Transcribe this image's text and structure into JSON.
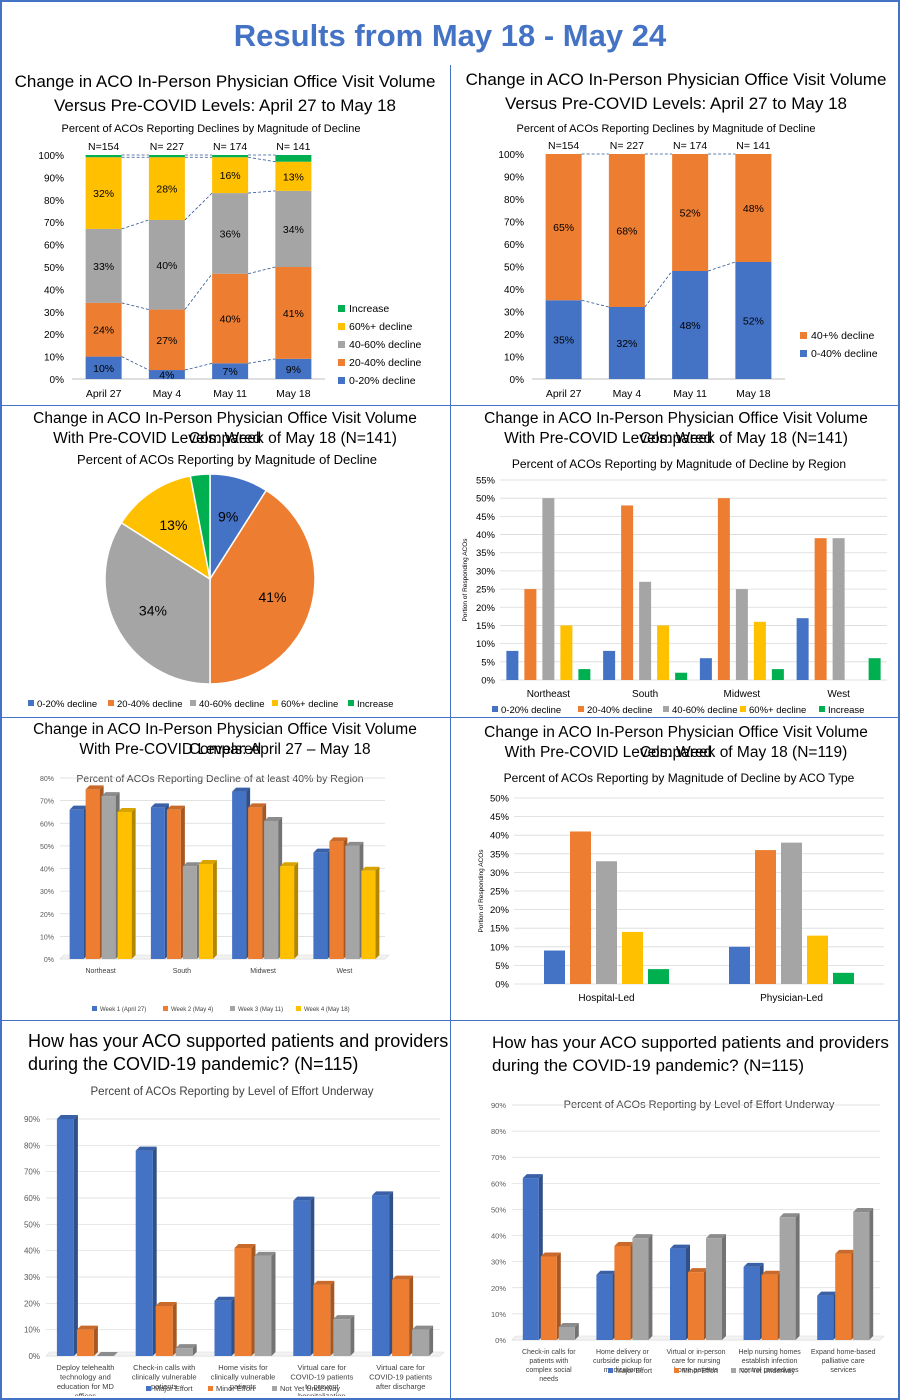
{
  "page": {
    "title": "Results from May 18 - May 24"
  },
  "colors": {
    "blue": "#4472c4",
    "orange": "#ed7d31",
    "gray": "#a5a5a5",
    "yellow": "#ffc000",
    "green": "#00b050"
  },
  "panels": {
    "p1": {
      "title1": "Change in ACO In-Person Physician Office Visit Volume",
      "title2": "Versus Pre-COVID Levels: April 27 to May 18"
    },
    "p2": {
      "title1": "Change in ACO In-Person Physician Office Visit Volume",
      "title2": "Versus Pre-COVID Levels: April 27 to May 18"
    },
    "p3": {
      "title1": "Change in ACO In-Person Physician Office Visit Volume Compared",
      "title2": "With Pre-COVID Levels: Week of May 18 (N=141)"
    },
    "p4": {
      "title1": "Change in ACO In-Person Physician Office Visit Volume Compared",
      "title2": "With Pre-COVID Levels: Week of May 18 (N=141)"
    },
    "p5": {
      "title1": "Change in ACO In-Person Physician Office Visit Volume Compared",
      "title2": "With Pre-COVID Levels: April 27 – May 18"
    },
    "p6": {
      "title1": "Change in ACO In-Person Physician Office Visit Volume Compared",
      "title2": "With Pre-COVID Levels: Week of May 18 (N=119)"
    },
    "p7": {
      "title1": "How has your ACO supported patients and providers",
      "title2": "during the COVID-19 pandemic? (N=115)"
    },
    "p8": {
      "title1": "How has your ACO supported patients and providers",
      "title2": "during the COVID-19 pandemic? (N=115)"
    }
  },
  "chart_data": [
    {
      "id": "c1",
      "type": "bar",
      "stacked": true,
      "title": "Percent of ACOs Reporting Declines by Magnitude of Decline",
      "categories": [
        "April 27",
        "May 4",
        "May 11",
        "May 18"
      ],
      "n_labels": [
        "N=154",
        "N= 227",
        "N= 174",
        "N= 141"
      ],
      "ylim": [
        0,
        100
      ],
      "yticks": [
        "0%",
        "10%",
        "20%",
        "30%",
        "40%",
        "50%",
        "60%",
        "70%",
        "80%",
        "90%",
        "100%"
      ],
      "series": [
        {
          "name": "0-20% decline",
          "values": [
            10,
            4,
            7,
            9
          ],
          "labels": [
            "10%",
            "4%",
            "7%",
            "9%"
          ]
        },
        {
          "name": "20-40% decline",
          "values": [
            24,
            27,
            40,
            41
          ],
          "labels": [
            "24%",
            "27%",
            "40%",
            "41%"
          ]
        },
        {
          "name": "40-60% decline",
          "values": [
            33,
            40,
            36,
            34
          ],
          "labels": [
            "33%",
            "40%",
            "36%",
            "34%"
          ]
        },
        {
          "name": "60%+ decline",
          "values": [
            32,
            28,
            16,
            13
          ],
          "labels": [
            "32%",
            "28%",
            "16%",
            "13%"
          ]
        },
        {
          "name": "Increase",
          "values": [
            1,
            1,
            1,
            3
          ],
          "labels": [
            "",
            "",
            "",
            ""
          ]
        }
      ],
      "legend": "right",
      "legend_order": [
        "Increase",
        "60%+ decline",
        "40-60% decline",
        "20-40% decline",
        "0-20% decline"
      ],
      "grid": false
    },
    {
      "id": "c2",
      "type": "bar",
      "stacked": true,
      "title": "Percent of ACOs Reporting Declines by Magnitude of Decline",
      "categories": [
        "April 27",
        "May 4",
        "May 11",
        "May 18"
      ],
      "n_labels": [
        "N=154",
        "N= 227",
        "N= 174",
        "N= 141"
      ],
      "ylim": [
        0,
        100
      ],
      "yticks": [
        "0%",
        "10%",
        "20%",
        "30%",
        "40%",
        "50%",
        "60%",
        "70%",
        "80%",
        "90%",
        "100%"
      ],
      "series": [
        {
          "name": "0-40% decline",
          "values": [
            35,
            32,
            48,
            52
          ],
          "labels": [
            "35%",
            "32%",
            "48%",
            "52%"
          ]
        },
        {
          "name": "40+% decline",
          "values": [
            65,
            68,
            52,
            48
          ],
          "labels": [
            "65%",
            "68%",
            "52%",
            "48%"
          ]
        }
      ],
      "legend": "right",
      "legend_order": [
        "40+% decline",
        "0-40% decline"
      ],
      "grid": false
    },
    {
      "id": "c3",
      "type": "pie",
      "title": "Percent of ACOs Reporting by Magnitude of Decline",
      "series": [
        {
          "name": "0-20% decline",
          "value": 9,
          "label": "9%"
        },
        {
          "name": "20-40% decline",
          "value": 41,
          "label": "41%"
        },
        {
          "name": "40-60% decline",
          "value": 34,
          "label": "34%"
        },
        {
          "name": "60%+ decline",
          "value": 13,
          "label": "13%"
        },
        {
          "name": "Increase",
          "value": 3,
          "label": ""
        }
      ],
      "legend": "bottom"
    },
    {
      "id": "c4",
      "type": "bar",
      "title": "Percent of ACOs Reporting by Magnitude of Decline by Region",
      "ylabel": "Portion of Responding ACOs",
      "categories": [
        "Northeast",
        "South",
        "Midwest",
        "West"
      ],
      "ylim": [
        0,
        55
      ],
      "yticks": [
        "0%",
        "5%",
        "10%",
        "15%",
        "20%",
        "25%",
        "30%",
        "35%",
        "40%",
        "45%",
        "50%",
        "55%"
      ],
      "series": [
        {
          "name": "0-20% decline",
          "values": [
            8,
            8,
            6,
            17
          ]
        },
        {
          "name": "20-40% decline",
          "values": [
            25,
            48,
            50,
            39
          ]
        },
        {
          "name": "40-60% decline",
          "values": [
            50,
            27,
            25,
            39
          ]
        },
        {
          "name": "60%+ decline",
          "values": [
            15,
            15,
            16,
            0
          ]
        },
        {
          "name": "Increase",
          "values": [
            3,
            2,
            3,
            6
          ]
        }
      ],
      "legend": "bottom",
      "grid": true
    },
    {
      "id": "c5",
      "type": "bar",
      "style": "3d",
      "title": "Percent of ACOs Reporting Decline of at least 40% by Region",
      "categories": [
        "Northeast",
        "South",
        "Midwest",
        "West"
      ],
      "ylim": [
        0,
        80
      ],
      "yticks": [
        "0%",
        "10%",
        "20%",
        "30%",
        "40%",
        "50%",
        "60%",
        "70%",
        "80%"
      ],
      "series": [
        {
          "name": "Week 1 (April 27)",
          "values": [
            66,
            67,
            74,
            47
          ]
        },
        {
          "name": "Week 2 (May 4)",
          "values": [
            75,
            66,
            67,
            52
          ]
        },
        {
          "name": "Week 3 (May 11)",
          "values": [
            72,
            41,
            61,
            50
          ]
        },
        {
          "name": "Week 4 (May 18)",
          "values": [
            65,
            42,
            41,
            39
          ]
        }
      ],
      "legend": "bottom",
      "grid": true
    },
    {
      "id": "c6",
      "type": "bar",
      "title": "Percent of ACOs Reporting by Magnitude of Decline by ACO Type",
      "ylabel": "Portion of Responding ACOs",
      "categories": [
        "Hospital-Led",
        "Physician-Led"
      ],
      "ylim": [
        0,
        50
      ],
      "yticks": [
        "0%",
        "5%",
        "10%",
        "15%",
        "20%",
        "25%",
        "30%",
        "35%",
        "40%",
        "45%",
        "50%"
      ],
      "series": [
        {
          "name": "0-20% decline",
          "values": [
            9,
            10
          ]
        },
        {
          "name": "20-40% decline",
          "values": [
            41,
            36
          ]
        },
        {
          "name": "40-60%  decline",
          "values": [
            33,
            38
          ]
        },
        {
          "name": "60%+ decline",
          "values": [
            14,
            13
          ]
        },
        {
          "name": "Increase",
          "values": [
            4,
            3
          ]
        }
      ],
      "legend": "bottom",
      "grid": true
    },
    {
      "id": "c7",
      "type": "bar",
      "style": "3d",
      "title": "Percent of ACOs Reporting by Level of Effort Underway",
      "categories": [
        [
          "Deploy telehealth",
          "technology and",
          "education for MD",
          "offices"
        ],
        [
          "Check-in calls with",
          "clinically vulnerable",
          "patients"
        ],
        [
          "Home visits for",
          "clinically vulnerable",
          "patients"
        ],
        [
          "Virtual care for",
          "COVID-19 patients",
          "to prevent",
          "hospitalization"
        ],
        [
          "Virtual care for",
          "COVID-19 patients",
          "after discharge"
        ]
      ],
      "ylim": [
        0,
        90
      ],
      "yticks": [
        "0%",
        "10%",
        "20%",
        "30%",
        "40%",
        "50%",
        "60%",
        "70%",
        "80%",
        "90%"
      ],
      "series": [
        {
          "name": "Major Effort",
          "values": [
            90,
            78,
            21,
            59,
            61
          ]
        },
        {
          "name": "Minor Effort",
          "values": [
            10,
            19,
            41,
            27,
            29
          ]
        },
        {
          "name": "Not Yet Underway",
          "values": [
            0,
            3,
            38,
            14,
            10
          ]
        }
      ],
      "legend": "bottom",
      "grid": true
    },
    {
      "id": "c8",
      "type": "bar",
      "style": "3d",
      "title": "Percent of ACOs Reporting by Level of Effort Underway",
      "categories": [
        [
          "Check-in calls for",
          "patients with",
          "complex social",
          "needs"
        ],
        [
          "Home delivery or",
          "curbside pickup for",
          "medications"
        ],
        [
          "Virtual or in-person",
          "care for nursing",
          "home patients"
        ],
        [
          "Help nursing homes",
          "establish infection",
          "control procedures"
        ],
        [
          "Expand home-based",
          "palliative care",
          "services"
        ]
      ],
      "ylim": [
        0,
        90
      ],
      "yticks": [
        "0%",
        "10%",
        "20%",
        "30%",
        "40%",
        "50%",
        "60%",
        "70%",
        "80%",
        "90%"
      ],
      "series": [
        {
          "name": "Major Effort",
          "values": [
            62,
            25,
            35,
            28,
            17
          ]
        },
        {
          "name": "Minor Effort",
          "values": [
            32,
            36,
            26,
            25,
            33
          ]
        },
        {
          "name": "Not Yet Underway",
          "values": [
            5,
            39,
            39,
            47,
            49
          ]
        }
      ],
      "legend": "bottom",
      "grid": true
    }
  ]
}
